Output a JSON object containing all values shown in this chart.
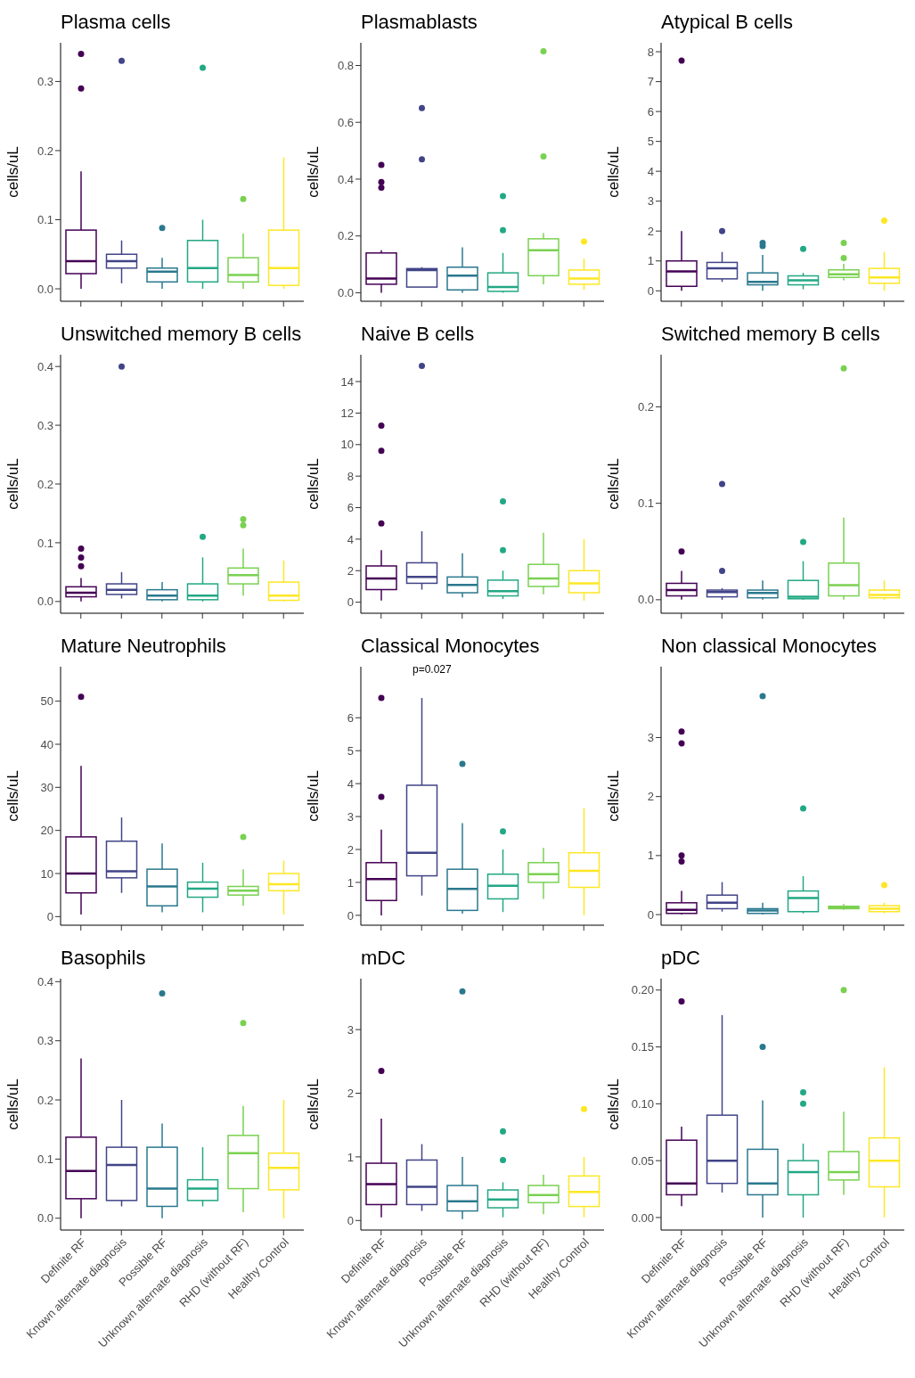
{
  "chart_data": [
    {
      "type": "box",
      "title": "Plasma cells",
      "ylabel": "cells/uL",
      "tick_labels": "y",
      "categories": [
        null,
        null,
        null,
        null,
        null,
        null
      ],
      "colors": [
        "#440154",
        "#414487",
        "#2a788e",
        "#22a884",
        "#7ad151",
        "#fde725"
      ],
      "ylim": [
        -0.018,
        0.356
      ],
      "yticks": [
        {
          "value": 0,
          "label": "0.0"
        },
        0.1,
        0.2,
        0.3
      ],
      "boxes": [
        {
          "low": 0.0,
          "q1": 0.022,
          "median": 0.04,
          "q3": 0.085,
          "high": 0.17,
          "outliers": [
            0.29,
            0.34
          ]
        },
        {
          "low": 0.008,
          "q1": 0.03,
          "median": 0.04,
          "q3": 0.05,
          "high": 0.07,
          "outliers": [
            0.33
          ]
        },
        {
          "low": 0.0,
          "q1": 0.01,
          "median": 0.025,
          "q3": 0.03,
          "high": 0.045,
          "outliers": [
            0.088
          ]
        },
        {
          "low": 0.0,
          "q1": 0.01,
          "median": 0.03,
          "q3": 0.07,
          "high": 0.1,
          "outliers": [
            0.32
          ]
        },
        {
          "low": 0.0,
          "q1": 0.01,
          "median": 0.02,
          "q3": 0.045,
          "high": 0.08,
          "outliers": [
            0.13
          ]
        },
        {
          "low": 0.0,
          "q1": 0.005,
          "median": 0.03,
          "q3": 0.085,
          "high": 0.19
        }
      ]
    },
    {
      "type": "box",
      "title": "Plasmablasts",
      "ylabel": "cells/uL",
      "tick_labels": "y",
      "categories": [
        null,
        null,
        null,
        null,
        null,
        null
      ],
      "colors": [
        "#440154",
        "#414487",
        "#2a788e",
        "#22a884",
        "#7ad151",
        "#fde725"
      ],
      "ylim": [
        -0.03,
        0.88
      ],
      "yticks": [
        {
          "value": 0,
          "label": "0.0"
        },
        0.2,
        0.4,
        0.6,
        0.8
      ],
      "boxes": [
        {
          "low": 0.0,
          "q1": 0.03,
          "median": 0.05,
          "q3": 0.14,
          "high": 0.15,
          "outliers": [
            0.37,
            0.39,
            0.45
          ]
        },
        {
          "low": 0.02,
          "q1": 0.02,
          "median": 0.08,
          "q3": 0.085,
          "high": 0.09,
          "outliers": [
            0.47,
            0.65
          ]
        },
        {
          "low": 0.0,
          "q1": 0.01,
          "median": 0.06,
          "q3": 0.09,
          "high": 0.16
        },
        {
          "low": 0.0,
          "q1": 0.005,
          "median": 0.02,
          "q3": 0.07,
          "high": 0.14,
          "outliers": [
            0.22,
            0.34
          ]
        },
        {
          "low": 0.03,
          "q1": 0.06,
          "median": 0.15,
          "q3": 0.19,
          "high": 0.21,
          "outliers": [
            0.48,
            0.85
          ]
        },
        {
          "low": 0.01,
          "q1": 0.03,
          "median": 0.05,
          "q3": 0.08,
          "high": 0.12,
          "outliers": [
            0.18
          ]
        }
      ]
    },
    {
      "type": "box",
      "title": "Atypical B cells",
      "ylabel": "cells/uL",
      "tick_labels": "y",
      "categories": [
        null,
        null,
        null,
        null,
        null,
        null
      ],
      "colors": [
        "#440154",
        "#414487",
        "#2a788e",
        "#22a884",
        "#7ad151",
        "#fde725"
      ],
      "ylim": [
        -0.35,
        8.3
      ],
      "yticks": [
        0,
        1,
        2,
        3,
        4,
        5,
        6,
        7,
        8
      ],
      "boxes": [
        {
          "low": 0.0,
          "q1": 0.15,
          "median": 0.65,
          "q3": 1.0,
          "high": 2.0,
          "outliers": [
            7.7
          ]
        },
        {
          "low": 0.3,
          "q1": 0.4,
          "median": 0.75,
          "q3": 0.95,
          "high": 1.3,
          "outliers": [
            2.0
          ]
        },
        {
          "low": 0.0,
          "q1": 0.2,
          "median": 0.3,
          "q3": 0.6,
          "high": 1.2,
          "outliers": [
            1.5,
            1.6
          ]
        },
        {
          "low": 0.05,
          "q1": 0.2,
          "median": 0.35,
          "q3": 0.5,
          "high": 0.6,
          "outliers": [
            1.4
          ]
        },
        {
          "low": 0.35,
          "q1": 0.45,
          "median": 0.55,
          "q3": 0.7,
          "high": 0.9,
          "outliers": [
            1.1,
            1.6
          ]
        },
        {
          "low": 0.0,
          "q1": 0.25,
          "median": 0.45,
          "q3": 0.75,
          "high": 1.3,
          "outliers": [
            2.35
          ]
        }
      ]
    },
    {
      "type": "box",
      "title": "Unswitched memory B cells",
      "ylabel": "cells/uL",
      "tick_labels": "y",
      "categories": [
        null,
        null,
        null,
        null,
        null,
        null
      ],
      "colors": [
        "#440154",
        "#414487",
        "#2a788e",
        "#22a884",
        "#7ad151",
        "#fde725"
      ],
      "ylim": [
        -0.02,
        0.42
      ],
      "yticks": [
        {
          "value": 0,
          "label": "0.0"
        },
        0.1,
        0.2,
        0.3,
        0.4
      ],
      "boxes": [
        {
          "low": 0.0,
          "q1": 0.008,
          "median": 0.015,
          "q3": 0.025,
          "high": 0.04,
          "outliers": [
            0.06,
            0.075,
            0.09
          ]
        },
        {
          "low": 0.005,
          "q1": 0.012,
          "median": 0.02,
          "q3": 0.03,
          "high": 0.05,
          "outliers": [
            0.4
          ]
        },
        {
          "low": 0.0,
          "q1": 0.003,
          "median": 0.01,
          "q3": 0.02,
          "high": 0.033
        },
        {
          "low": 0.0,
          "q1": 0.003,
          "median": 0.01,
          "q3": 0.03,
          "high": 0.075,
          "outliers": [
            0.11
          ]
        },
        {
          "low": 0.01,
          "q1": 0.03,
          "median": 0.045,
          "q3": 0.057,
          "high": 0.09,
          "outliers": [
            0.13,
            0.14
          ]
        },
        {
          "low": 0.0,
          "q1": 0.002,
          "median": 0.01,
          "q3": 0.033,
          "high": 0.07
        }
      ]
    },
    {
      "type": "box",
      "title": "Naive B cells",
      "ylabel": "cells/uL",
      "tick_labels": "y",
      "categories": [
        null,
        null,
        null,
        null,
        null,
        null
      ],
      "colors": [
        "#440154",
        "#414487",
        "#2a788e",
        "#22a884",
        "#7ad151",
        "#fde725"
      ],
      "ylim": [
        -0.7,
        15.7
      ],
      "yticks": [
        0,
        2,
        4,
        6,
        8,
        10,
        12,
        14
      ],
      "boxes": [
        {
          "low": 0.1,
          "q1": 0.8,
          "median": 1.5,
          "q3": 2.3,
          "high": 3.3,
          "outliers": [
            5.0,
            9.6,
            11.2
          ]
        },
        {
          "low": 0.8,
          "q1": 1.2,
          "median": 1.6,
          "q3": 2.5,
          "high": 4.5,
          "outliers": [
            15.0
          ]
        },
        {
          "low": 0.3,
          "q1": 0.6,
          "median": 1.1,
          "q3": 1.6,
          "high": 3.1
        },
        {
          "low": 0.2,
          "q1": 0.4,
          "median": 0.7,
          "q3": 1.4,
          "high": 2.0,
          "outliers": [
            3.3,
            6.4
          ]
        },
        {
          "low": 0.5,
          "q1": 1.0,
          "median": 1.5,
          "q3": 2.4,
          "high": 4.4
        },
        {
          "low": 0.1,
          "q1": 0.6,
          "median": 1.2,
          "q3": 2.0,
          "high": 4.0
        }
      ]
    },
    {
      "type": "box",
      "title": "Switched memory B cells",
      "ylabel": "cells/uL",
      "tick_labels": "y",
      "categories": [
        null,
        null,
        null,
        null,
        null,
        null
      ],
      "colors": [
        "#440154",
        "#414487",
        "#2a788e",
        "#22a884",
        "#7ad151",
        "#fde725"
      ],
      "ylim": [
        -0.014,
        0.254
      ],
      "yticks": [
        {
          "value": 0,
          "label": "0.0"
        },
        0.1,
        0.2
      ],
      "boxes": [
        {
          "low": 0.0,
          "q1": 0.004,
          "median": 0.01,
          "q3": 0.017,
          "high": 0.03,
          "outliers": [
            0.05
          ]
        },
        {
          "low": 0.0,
          "q1": 0.003,
          "median": 0.008,
          "q3": 0.01,
          "high": 0.012,
          "outliers": [
            0.03,
            0.12
          ]
        },
        {
          "low": 0.0,
          "q1": 0.002,
          "median": 0.007,
          "q3": 0.01,
          "high": 0.02
        },
        {
          "low": 0.0,
          "q1": 0.001,
          "median": 0.003,
          "q3": 0.02,
          "high": 0.04,
          "outliers": [
            0.06
          ]
        },
        {
          "low": 0.0,
          "q1": 0.004,
          "median": 0.015,
          "q3": 0.038,
          "high": 0.085,
          "outliers": [
            0.24
          ]
        },
        {
          "low": 0.0,
          "q1": 0.002,
          "median": 0.005,
          "q3": 0.01,
          "high": 0.02
        }
      ]
    },
    {
      "type": "box",
      "title": "Mature Neutrophils",
      "ylabel": "cells/uL",
      "tick_labels": "y",
      "categories": [
        null,
        null,
        null,
        null,
        null,
        null
      ],
      "colors": [
        "#440154",
        "#414487",
        "#2a788e",
        "#22a884",
        "#7ad151",
        "#fde725"
      ],
      "ylim": [
        -2,
        58
      ],
      "yticks": [
        0,
        10,
        20,
        30,
        40,
        50
      ],
      "boxes": [
        {
          "low": 0.5,
          "q1": 5.5,
          "median": 10,
          "q3": 18.5,
          "high": 35,
          "outliers": [
            51
          ]
        },
        {
          "low": 5.5,
          "q1": 9,
          "median": 10.5,
          "q3": 17.5,
          "high": 23
        },
        {
          "low": 1,
          "q1": 2.5,
          "median": 7,
          "q3": 11,
          "high": 17
        },
        {
          "low": 1,
          "q1": 4.5,
          "median": 6.5,
          "q3": 8,
          "high": 12.5
        },
        {
          "low": 2.5,
          "q1": 5,
          "median": 6,
          "q3": 7,
          "high": 11,
          "outliers": [
            18.5
          ]
        },
        {
          "low": 0.5,
          "q1": 6,
          "median": 7.5,
          "q3": 10,
          "high": 13
        }
      ]
    },
    {
      "type": "box",
      "title": "Classical Monocytes",
      "ylabel": "cells/uL",
      "tick_labels": "y",
      "categories": [
        null,
        null,
        null,
        null,
        null,
        null
      ],
      "colors": [
        "#440154",
        "#414487",
        "#2a788e",
        "#22a884",
        "#7ad151",
        "#fde725"
      ],
      "ylim": [
        -0.3,
        7.55
      ],
      "yticks": [
        0,
        1,
        2,
        3,
        4,
        5,
        6
      ],
      "annotations": [
        "p=0.027"
      ],
      "boxes": [
        {
          "low": 0,
          "q1": 0.45,
          "median": 1.1,
          "q3": 1.6,
          "high": 2.6,
          "outliers": [
            3.6,
            6.6
          ]
        },
        {
          "low": 0.6,
          "q1": 1.2,
          "median": 1.9,
          "q3": 3.95,
          "high": 6.6
        },
        {
          "low": 0.05,
          "q1": 0.15,
          "median": 0.8,
          "q3": 1.4,
          "high": 2.8,
          "outliers": [
            4.6
          ]
        },
        {
          "low": 0.1,
          "q1": 0.5,
          "median": 0.9,
          "q3": 1.25,
          "high": 2.0,
          "outliers": [
            2.55
          ]
        },
        {
          "low": 0.5,
          "q1": 1.0,
          "median": 1.25,
          "q3": 1.6,
          "high": 2.05
        },
        {
          "low": 0,
          "q1": 0.85,
          "median": 1.35,
          "q3": 1.9,
          "high": 3.25
        }
      ]
    },
    {
      "type": "box",
      "title": "Non classical Monocytes",
      "ylabel": "cells/uL",
      "tick_labels": "y",
      "categories": [
        null,
        null,
        null,
        null,
        null,
        null
      ],
      "colors": [
        "#440154",
        "#414487",
        "#2a788e",
        "#22a884",
        "#7ad151",
        "#fde725"
      ],
      "ylim": [
        -0.18,
        4.2
      ],
      "yticks": [
        0,
        1,
        2,
        3
      ],
      "boxes": [
        {
          "low": 0,
          "q1": 0.02,
          "median": 0.08,
          "q3": 0.2,
          "high": 0.4,
          "outliers": [
            0.9,
            1.0,
            2.9,
            3.1
          ]
        },
        {
          "low": 0.05,
          "q1": 0.1,
          "median": 0.2,
          "q3": 0.33,
          "high": 0.55
        },
        {
          "low": 0,
          "q1": 0.02,
          "median": 0.07,
          "q3": 0.1,
          "high": 0.2,
          "outliers": [
            3.7
          ]
        },
        {
          "low": 0.02,
          "q1": 0.05,
          "median": 0.28,
          "q3": 0.4,
          "high": 0.65,
          "outliers": [
            1.8
          ]
        },
        {
          "low": 0.08,
          "q1": 0.1,
          "median": 0.12,
          "q3": 0.14,
          "high": 0.18
        },
        {
          "low": 0.02,
          "q1": 0.05,
          "median": 0.1,
          "q3": 0.15,
          "high": 0.2,
          "outliers": [
            0.5
          ]
        }
      ]
    },
    {
      "type": "box",
      "title": "Basophils",
      "ylabel": "cells/uL",
      "categories": [
        "Definite RF",
        "Known alternate diagnosis",
        "Possible RF",
        "Unknown alternate diagnosis",
        "RHD (without RF)",
        "Healthy Control"
      ],
      "colors": [
        "#440154",
        "#414487",
        "#2a788e",
        "#22a884",
        "#7ad151",
        "#fde725"
      ],
      "ylim": [
        -0.02,
        0.405
      ],
      "yticks": [
        {
          "value": 0,
          "label": "0.0"
        },
        0.1,
        0.2,
        0.3,
        0.4
      ],
      "boxes": [
        {
          "low": 0,
          "q1": 0.033,
          "median": 0.08,
          "q3": 0.137,
          "high": 0.27
        },
        {
          "low": 0.02,
          "q1": 0.03,
          "median": 0.09,
          "q3": 0.12,
          "high": 0.2
        },
        {
          "low": 0,
          "q1": 0.02,
          "median": 0.05,
          "q3": 0.12,
          "high": 0.16,
          "outliers": [
            0.38
          ]
        },
        {
          "low": 0.02,
          "q1": 0.03,
          "median": 0.05,
          "q3": 0.065,
          "high": 0.12
        },
        {
          "low": 0.01,
          "q1": 0.05,
          "median": 0.11,
          "q3": 0.14,
          "high": 0.19,
          "outliers": [
            0.33
          ]
        },
        {
          "low": 0,
          "q1": 0.048,
          "median": 0.085,
          "q3": 0.11,
          "high": 0.2
        }
      ]
    },
    {
      "type": "box",
      "title": "mDC",
      "ylabel": "cells/uL",
      "categories": [
        "Definite RF",
        "Known alternate diagnosis",
        "Possible RF",
        "Unknown alternate diagnosis",
        "RHD (without RF)",
        "Healthy Control"
      ],
      "colors": [
        "#440154",
        "#414487",
        "#2a788e",
        "#22a884",
        "#7ad151",
        "#fde725"
      ],
      "ylim": [
        -0.15,
        3.8
      ],
      "yticks": [
        0,
        1,
        2,
        3
      ],
      "boxes": [
        {
          "low": 0.05,
          "q1": 0.25,
          "median": 0.57,
          "q3": 0.9,
          "high": 1.6,
          "outliers": [
            2.35
          ]
        },
        {
          "low": 0.15,
          "q1": 0.25,
          "median": 0.53,
          "q3": 0.95,
          "high": 1.2
        },
        {
          "low": 0.02,
          "q1": 0.15,
          "median": 0.3,
          "q3": 0.55,
          "high": 1.0,
          "outliers": [
            3.6
          ]
        },
        {
          "low": 0.05,
          "q1": 0.2,
          "median": 0.33,
          "q3": 0.48,
          "high": 0.6,
          "outliers": [
            0.95,
            1.4
          ]
        },
        {
          "low": 0.1,
          "q1": 0.28,
          "median": 0.4,
          "q3": 0.55,
          "high": 0.72
        },
        {
          "low": 0.05,
          "q1": 0.22,
          "median": 0.45,
          "q3": 0.7,
          "high": 1.0,
          "outliers": [
            1.75
          ]
        }
      ]
    },
    {
      "type": "box",
      "title": "pDC",
      "ylabel": "cells/uL",
      "categories": [
        "Definite RF",
        "Known alternate diagnosis",
        "Possible RF",
        "Unknown alternate diagnosis",
        "RHD (without RF)",
        "Healthy Control"
      ],
      "colors": [
        "#440154",
        "#414487",
        "#2a788e",
        "#22a884",
        "#7ad151",
        "#fde725"
      ],
      "ylim": [
        -0.011,
        0.21
      ],
      "yticks": [
        {
          "value": 0,
          "label": "0.00"
        },
        {
          "value": 0.05,
          "label": "0.05"
        },
        {
          "value": 0.1,
          "label": "0.10"
        },
        {
          "value": 0.15,
          "label": "0.15"
        },
        {
          "value": 0.2,
          "label": "0.20"
        }
      ],
      "boxes": [
        {
          "low": 0.01,
          "q1": 0.02,
          "median": 0.03,
          "q3": 0.068,
          "high": 0.08,
          "outliers": [
            0.19
          ]
        },
        {
          "low": 0.022,
          "q1": 0.03,
          "median": 0.05,
          "q3": 0.09,
          "high": 0.178
        },
        {
          "low": 0,
          "q1": 0.02,
          "median": 0.03,
          "q3": 0.06,
          "high": 0.103,
          "outliers": [
            0.15
          ]
        },
        {
          "low": 0,
          "q1": 0.02,
          "median": 0.04,
          "q3": 0.05,
          "high": 0.065,
          "outliers": [
            0.1,
            0.11
          ]
        },
        {
          "low": 0.02,
          "q1": 0.033,
          "median": 0.04,
          "q3": 0.058,
          "high": 0.093,
          "outliers": [
            0.2
          ]
        },
        {
          "low": 0,
          "q1": 0.027,
          "median": 0.05,
          "q3": 0.07,
          "high": 0.132
        }
      ]
    }
  ]
}
